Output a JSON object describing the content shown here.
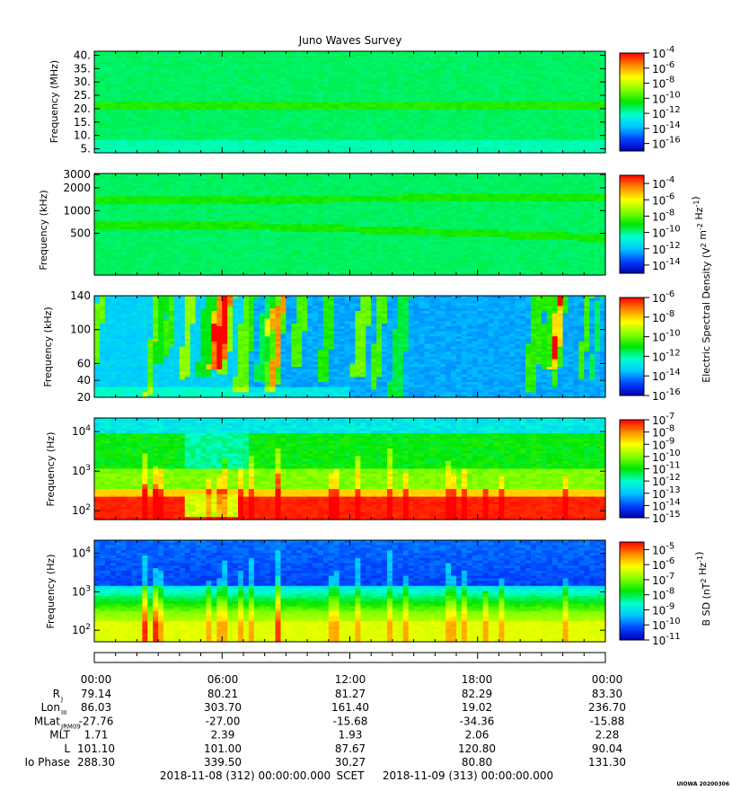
{
  "title": "Juno Waves Survey",
  "chart_data": [
    {
      "type": "heatmap",
      "name": "panel-1",
      "ylabel": "Frequency (MHz)",
      "yscale": "linear",
      "ylim": [
        3.5,
        41.5
      ],
      "yticks": [
        5,
        10,
        15,
        20,
        25,
        30,
        35,
        40
      ],
      "yticklabels": [
        "5.",
        "10.",
        "15.",
        "20.",
        "25.",
        "30.",
        "35.",
        "40."
      ],
      "colorbar": {
        "scale": "log",
        "range": [
          -17,
          -4
        ],
        "labels": [
          "-4",
          "-6",
          "-8",
          "-10",
          "-12",
          "-14",
          "-16"
        ]
      },
      "bands": [
        {
          "y": 21,
          "strength": 0.6
        },
        {
          "y": 9,
          "strength": 0.3
        }
      ],
      "background_level": 0.44
    },
    {
      "type": "heatmap",
      "name": "panel-2",
      "ylabel": "Frequency (kHz)",
      "yscale": "log",
      "ylim": [
        140,
        3100
      ],
      "yticks": [
        500,
        1000,
        2000,
        3000
      ],
      "yticklabels": [
        "500",
        "1000",
        "2000",
        "3000"
      ],
      "colorbar": {
        "scale": "log",
        "range": [
          -15,
          -3
        ],
        "labels": [
          "-4",
          "-6",
          "-8",
          "-10",
          "-12",
          "-14"
        ],
        "label": "Electric Spectral Density (V^2 m^-2 Hz^-1)"
      },
      "bands": [
        {
          "y": 1350,
          "strength": 0.55,
          "y_end": 1500
        },
        {
          "y": 620,
          "strength": 0.55,
          "y_end": 430
        }
      ],
      "background_level": 0.44
    },
    {
      "type": "heatmap",
      "name": "panel-3",
      "ylabel": "Frequency (kHz)",
      "yscale": "linear",
      "ylim": [
        20,
        140
      ],
      "yticks": [
        20,
        40,
        60,
        100,
        140
      ],
      "yticklabels": [
        "20",
        "40",
        "60",
        "100",
        "140"
      ],
      "colorbar": {
        "scale": "log",
        "range": [
          -16,
          -6
        ],
        "labels": [
          "-6",
          "-8",
          "-10",
          "-12",
          "-14",
          "-16"
        ]
      },
      "background_level": 0.22
    },
    {
      "type": "heatmap",
      "name": "panel-4",
      "ylabel": "Frequency (Hz)",
      "yscale": "log",
      "ylim": [
        60,
        22000
      ],
      "yticks": [
        100,
        1000,
        10000
      ],
      "yticklabels": [
        "10^2",
        "10^3",
        "10^4"
      ],
      "colorbar": {
        "scale": "log",
        "range": [
          -15,
          -7
        ],
        "labels": [
          "-7",
          "-8",
          "-9",
          "-10",
          "-11",
          "-12",
          "-13",
          "-14",
          "-15"
        ]
      },
      "background_level": 0.35
    },
    {
      "type": "heatmap",
      "name": "panel-5",
      "ylabel": "Frequency (Hz)",
      "yscale": "log",
      "ylim": [
        50,
        22000
      ],
      "yticks": [
        100,
        1000,
        10000
      ],
      "yticklabels": [
        "10^2",
        "10^3",
        "10^4"
      ],
      "colorbar": {
        "scale": "log",
        "range": [
          -11,
          -4.5
        ],
        "labels": [
          "-5",
          "-6",
          "-7",
          "-8",
          "-9",
          "-10",
          "-11"
        ],
        "label": "B SD (nT^2 Hz^-1)"
      },
      "background_level": 0.15
    }
  ],
  "xaxis": {
    "ticks": [
      "00:00",
      "06:00",
      "12:00",
      "18:00",
      "00:00"
    ]
  },
  "ephemeris": [
    {
      "label": "R",
      "sub": "J",
      "values": [
        "79.14",
        "80.21",
        "81.27",
        "82.29",
        "83.30"
      ]
    },
    {
      "label": "Lon",
      "sub": "III",
      "values": [
        "86.03",
        "303.70",
        "161.40",
        "19.02",
        "236.70"
      ]
    },
    {
      "label": "MLat",
      "sub": "JRM09",
      "values": [
        "-27.76",
        "-27.00",
        "-15.68",
        "-34.36",
        "-15.88"
      ]
    },
    {
      "label": "MLT",
      "sub": "",
      "values": [
        "1.71",
        "2.39",
        "1.93",
        "2.06",
        "2.28"
      ]
    },
    {
      "label": "L",
      "sub": "",
      "values": [
        "101.10",
        "101.00",
        "87.67",
        "120.80",
        "90.04"
      ]
    },
    {
      "label": "Io Phase",
      "sub": "",
      "values": [
        "288.30",
        "339.50",
        "30.27",
        "80.80",
        "131.30"
      ]
    }
  ],
  "footer": {
    "start": "2018-11-08 (312) 00:00:00.000",
    "scet": "SCET",
    "end": "2018-11-09 (313) 00:00:00.000"
  },
  "credit": "UIOWA 20200306"
}
